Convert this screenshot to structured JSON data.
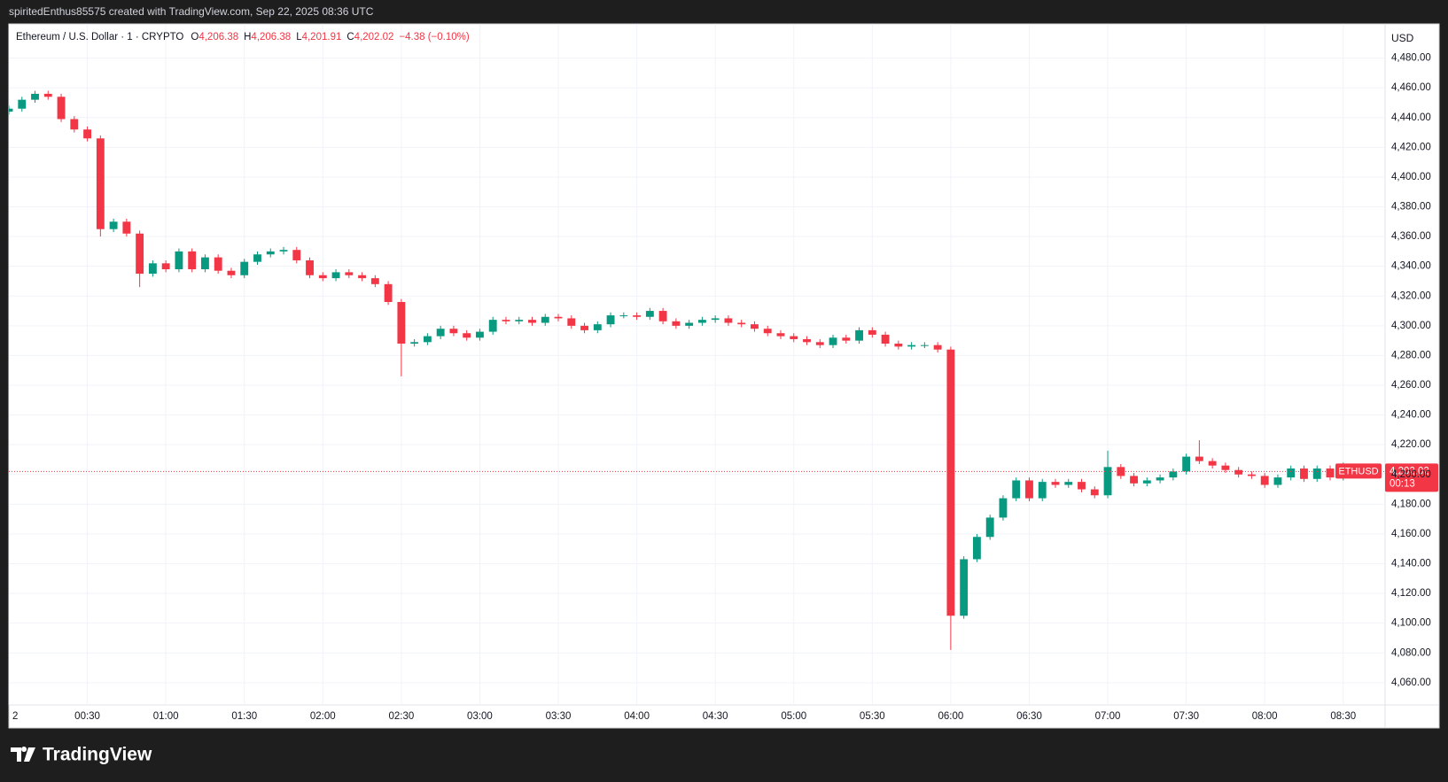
{
  "header": {
    "credit": "spiritedEnthus85575 created with TradingView.com, Sep 22, 2025 08:36 UTC"
  },
  "footer": {
    "brand": "TradingView"
  },
  "chart_data": {
    "type": "candlestick",
    "title": "Ethereum / U.S. Dollar · 1 · CRYPTO",
    "legend_fields": [
      {
        "key": "O",
        "value": "4,206.38"
      },
      {
        "key": "H",
        "value": "4,206.38"
      },
      {
        "key": "L",
        "value": "4,201.91"
      },
      {
        "key": "C",
        "value": "4,202.02"
      }
    ],
    "change": "−4.38 (−0.10%)",
    "currency": "USD",
    "symbol": "ETHUSD",
    "last_price_label": "4,202.02",
    "countdown": "00:13",
    "up_color": "#089981",
    "down_color": "#f23645",
    "grid": true,
    "xlim": [
      0,
      526
    ],
    "ylim": [
      4045,
      4503
    ],
    "xticks": [
      {
        "value": 0,
        "label": "2"
      },
      {
        "value": 30,
        "label": "00:30"
      },
      {
        "value": 60,
        "label": "01:00"
      },
      {
        "value": 90,
        "label": "01:30"
      },
      {
        "value": 120,
        "label": "02:00"
      },
      {
        "value": 150,
        "label": "02:30"
      },
      {
        "value": 180,
        "label": "03:00"
      },
      {
        "value": 210,
        "label": "03:30"
      },
      {
        "value": 240,
        "label": "04:00"
      },
      {
        "value": 270,
        "label": "04:30"
      },
      {
        "value": 300,
        "label": "05:00"
      },
      {
        "value": 330,
        "label": "05:30"
      },
      {
        "value": 360,
        "label": "06:00"
      },
      {
        "value": 390,
        "label": "06:30"
      },
      {
        "value": 420,
        "label": "07:00"
      },
      {
        "value": 450,
        "label": "07:30"
      },
      {
        "value": 480,
        "label": "08:00"
      },
      {
        "value": 510,
        "label": "08:30"
      }
    ],
    "yticks": [
      {
        "value": 4060,
        "label": "4,060.00"
      },
      {
        "value": 4080,
        "label": "4,080.00"
      },
      {
        "value": 4100,
        "label": "4,100.00"
      },
      {
        "value": 4120,
        "label": "4,120.00"
      },
      {
        "value": 4140,
        "label": "4,140.00"
      },
      {
        "value": 4160,
        "label": "4,160.00"
      },
      {
        "value": 4180,
        "label": "4,180.00"
      },
      {
        "value": 4200,
        "label": "4,200.00"
      },
      {
        "value": 4220,
        "label": "4,220.00"
      },
      {
        "value": 4240,
        "label": "4,240.00"
      },
      {
        "value": 4260,
        "label": "4,260.00"
      },
      {
        "value": 4280,
        "label": "4,280.00"
      },
      {
        "value": 4300,
        "label": "4,300.00"
      },
      {
        "value": 4320,
        "label": "4,320.00"
      },
      {
        "value": 4340,
        "label": "4,340.00"
      },
      {
        "value": 4360,
        "label": "4,360.00"
      },
      {
        "value": 4380,
        "label": "4,380.00"
      },
      {
        "value": 4400,
        "label": "4,400.00"
      },
      {
        "value": 4420,
        "label": "4,420.00"
      },
      {
        "value": 4440,
        "label": "4,440.00"
      },
      {
        "value": 4460,
        "label": "4,460.00"
      },
      {
        "value": 4480,
        "label": "4,480.00"
      }
    ],
    "x": [
      0,
      5,
      10,
      15,
      20,
      25,
      30,
      35,
      40,
      45,
      50,
      55,
      60,
      65,
      70,
      75,
      80,
      85,
      90,
      95,
      100,
      105,
      110,
      115,
      120,
      125,
      130,
      135,
      140,
      145,
      150,
      155,
      160,
      165,
      170,
      175,
      180,
      185,
      190,
      195,
      200,
      205,
      210,
      215,
      220,
      225,
      230,
      235,
      240,
      245,
      250,
      255,
      260,
      265,
      270,
      275,
      280,
      285,
      290,
      295,
      300,
      305,
      310,
      315,
      320,
      325,
      330,
      335,
      340,
      345,
      350,
      355,
      360,
      365,
      370,
      375,
      380,
      385,
      390,
      395,
      400,
      405,
      410,
      415,
      420,
      425,
      430,
      435,
      440,
      445,
      450,
      455,
      460,
      465,
      470,
      475,
      480,
      485,
      490,
      495,
      500,
      505,
      510,
      515
    ],
    "open": [
      4444,
      4446,
      4452,
      4456,
      4454,
      4439,
      4432,
      4426,
      4365,
      4370,
      4362,
      4335,
      4342,
      4338,
      4350,
      4338,
      4346,
      4337,
      4334,
      4343,
      4348,
      4350,
      4351,
      4344,
      4334,
      4332,
      4336,
      4334,
      4332,
      4328,
      4316,
      4288,
      4289,
      4293,
      4298,
      4295,
      4292,
      4296,
      4304,
      4303,
      4304,
      4302,
      4306,
      4305,
      4300,
      4297,
      4301,
      4307,
      4307,
      4306,
      4310,
      4303,
      4300,
      4302,
      4304,
      4305,
      4302,
      4301,
      4298,
      4295,
      4293,
      4291,
      4289,
      4287,
      4292,
      4290,
      4297,
      4294,
      4288,
      4286,
      4287,
      4287,
      4284,
      4105,
      4143,
      4158,
      4171,
      4184,
      4196,
      4184,
      4195,
      4193,
      4195,
      4190,
      4186,
      4205,
      4199,
      4194,
      4196,
      4198,
      4202,
      4212,
      4209,
      4206,
      4203,
      4200,
      4199,
      4193,
      4198,
      4204,
      4197,
      4204,
      4198,
      4206.38
    ],
    "high": [
      4448,
      4454,
      4458,
      4458,
      4456,
      4441,
      4434,
      4428,
      4372,
      4372,
      4364,
      4344,
      4344,
      4352,
      4352,
      4348,
      4348,
      4339,
      4345,
      4350,
      4352,
      4353,
      4353,
      4346,
      4336,
      4338,
      4338,
      4336,
      4334,
      4330,
      4318,
      4291,
      4295,
      4300,
      4300,
      4297,
      4298,
      4306,
      4306,
      4306,
      4306,
      4308,
      4308,
      4307,
      4302,
      4303,
      4309,
      4309,
      4309,
      4312,
      4312,
      4305,
      4304,
      4306,
      4307,
      4307,
      4304,
      4303,
      4300,
      4297,
      4295,
      4293,
      4291,
      4294,
      4294,
      4299,
      4299,
      4296,
      4290,
      4289,
      4289,
      4289,
      4286,
      4145,
      4160,
      4173,
      4186,
      4198,
      4198,
      4197,
      4197,
      4197,
      4197,
      4192,
      4216,
      4207,
      4201,
      4198,
      4200,
      4204,
      4214,
      4223,
      4211,
      4208,
      4205,
      4202,
      4201,
      4200,
      4206,
      4206,
      4206,
      4206,
      4208,
      4206.38
    ],
    "low": [
      4442,
      4444,
      4450,
      4452,
      4437,
      4430,
      4424,
      4360,
      4363,
      4360,
      4326,
      4333,
      4336,
      4336,
      4336,
      4336,
      4335,
      4332,
      4332,
      4341,
      4346,
      4348,
      4342,
      4332,
      4330,
      4330,
      4332,
      4330,
      4326,
      4314,
      4266,
      4286,
      4287,
      4291,
      4293,
      4290,
      4290,
      4294,
      4301,
      4301,
      4300,
      4300,
      4303,
      4298,
      4295,
      4295,
      4299,
      4305,
      4304,
      4304,
      4301,
      4298,
      4298,
      4300,
      4302,
      4300,
      4299,
      4296,
      4293,
      4291,
      4289,
      4287,
      4285,
      4285,
      4288,
      4288,
      4292,
      4286,
      4284,
      4284,
      4285,
      4282,
      4082,
      4103,
      4141,
      4156,
      4169,
      4182,
      4182,
      4182,
      4191,
      4191,
      4188,
      4184,
      4184,
      4197,
      4192,
      4192,
      4194,
      4196,
      4200,
      4207,
      4204,
      4201,
      4198,
      4197,
      4191,
      4191,
      4196,
      4195,
      4195,
      4196,
      4196,
      4201.91
    ],
    "close": [
      4446,
      4452,
      4456,
      4454,
      4439,
      4432,
      4426,
      4365,
      4370,
      4362,
      4335,
      4342,
      4338,
      4350,
      4338,
      4346,
      4337,
      4334,
      4343,
      4348,
      4350,
      4351,
      4344,
      4334,
      4332,
      4336,
      4334,
      4332,
      4328,
      4316,
      4288,
      4289,
      4293,
      4298,
      4295,
      4292,
      4296,
      4304,
      4303,
      4304,
      4302,
      4306,
      4305,
      4300,
      4297,
      4301,
      4307,
      4307,
      4306,
      4310,
      4303,
      4300,
      4302,
      4304,
      4305,
      4302,
      4301,
      4298,
      4295,
      4293,
      4291,
      4289,
      4287,
      4292,
      4290,
      4297,
      4294,
      4288,
      4286,
      4287,
      4287,
      4284,
      4105,
      4143,
      4158,
      4171,
      4184,
      4196,
      4184,
      4195,
      4193,
      4195,
      4190,
      4186,
      4205,
      4199,
      4194,
      4196,
      4198,
      4202,
      4212,
      4209,
      4206,
      4203,
      4200,
      4199,
      4193,
      4198,
      4204,
      4197,
      4204,
      4198,
      4206,
      4202.02
    ]
  }
}
